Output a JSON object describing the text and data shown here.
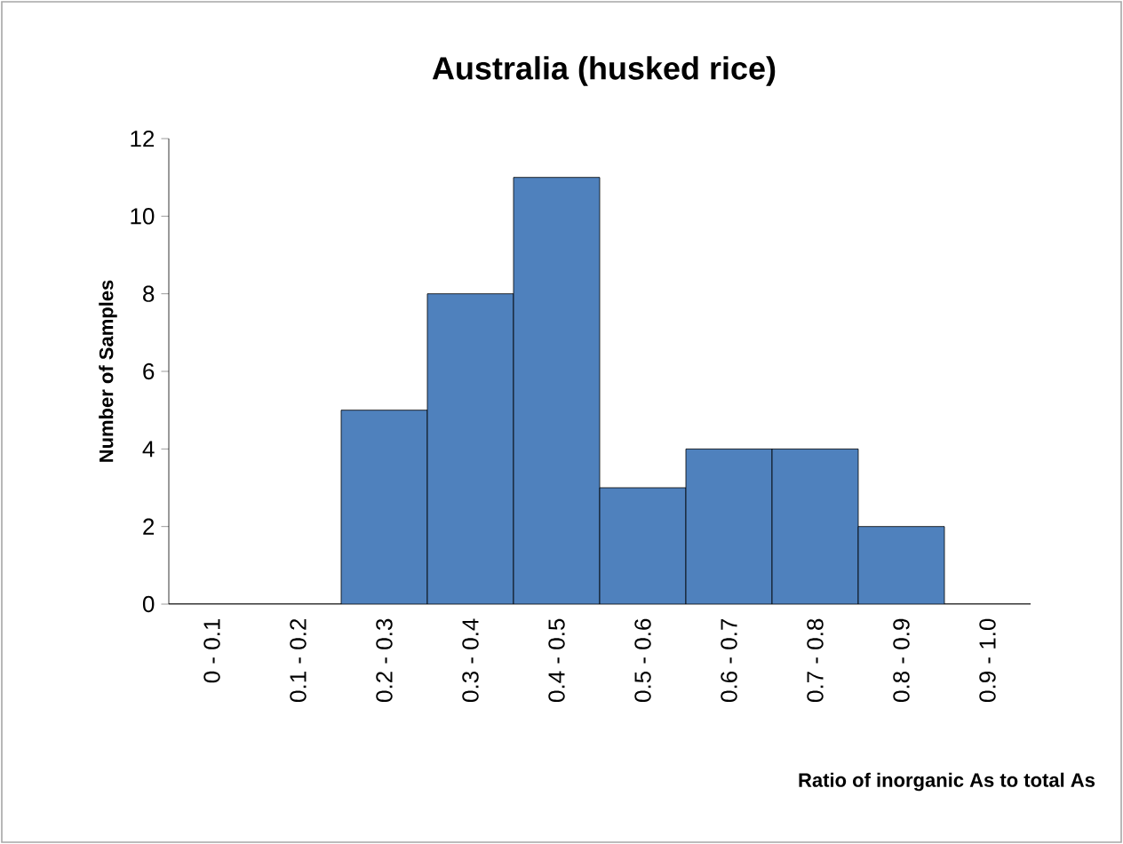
{
  "chart_data": {
    "type": "bar",
    "title": "Australia (husked rice)",
    "xlabel": "Ratio of inorganic As to total As",
    "ylabel": "Number of Samples",
    "categories": [
      "0 - 0.1",
      "0.1 - 0.2",
      "0.2 - 0.3",
      "0.3 - 0.4",
      "0.4 - 0.5",
      "0.5 - 0.6",
      "0.6 - 0.7",
      "0.7 - 0.8",
      "0.8 - 0.9",
      "0.9 - 1.0"
    ],
    "values": [
      0,
      0,
      5,
      8,
      11,
      3,
      4,
      4,
      2,
      0
    ],
    "color": "#4f81bd",
    "ylim": [
      0,
      12
    ],
    "yticks": [
      0,
      2,
      4,
      6,
      8,
      10,
      12
    ]
  }
}
